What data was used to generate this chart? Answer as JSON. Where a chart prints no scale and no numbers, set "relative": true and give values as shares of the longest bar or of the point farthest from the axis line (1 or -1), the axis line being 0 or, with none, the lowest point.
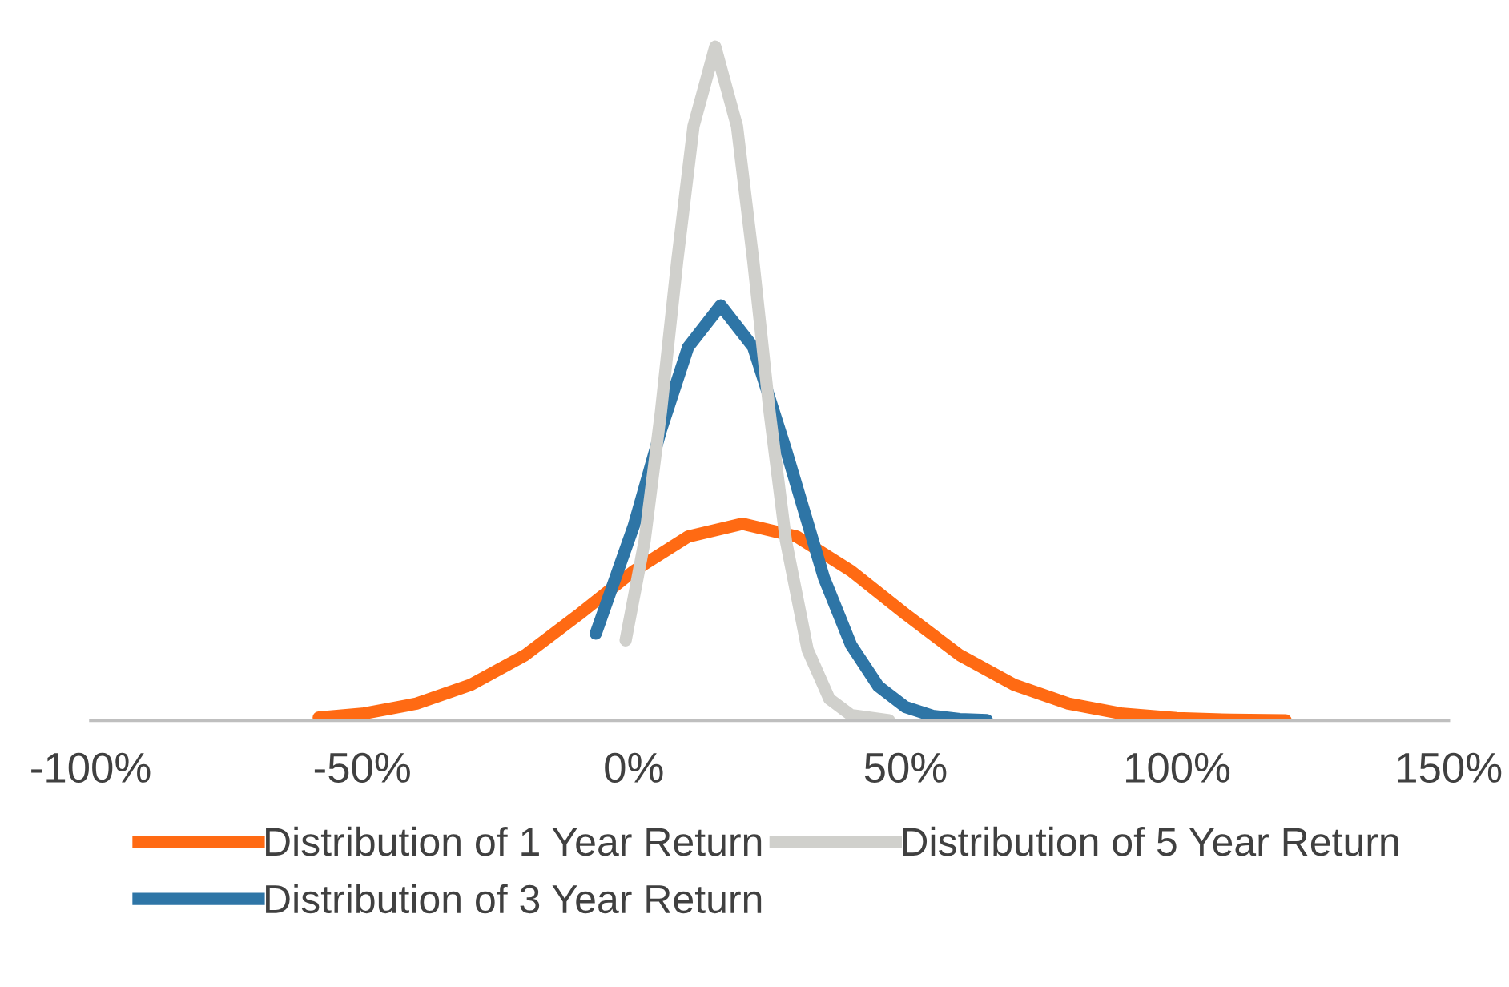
{
  "chart_data": {
    "type": "line",
    "relative": true,
    "xlim": [
      -100,
      150
    ],
    "xticks": [
      {
        "value": -100,
        "label": "-100%"
      },
      {
        "value": -50,
        "label": "-50%"
      },
      {
        "value": 0,
        "label": "0%"
      },
      {
        "value": 50,
        "label": "50%"
      },
      {
        "value": 100,
        "label": "100%"
      },
      {
        "value": 150,
        "label": "150%"
      }
    ],
    "grid": false,
    "legend": "bottom",
    "marker": "none",
    "line_style": "solid",
    "tick_labels": "x",
    "series": [
      {
        "name": "Distribution of 1 Year Return",
        "color": "#ff6a13",
        "x": [
          -58,
          -50,
          -40,
          -30,
          -20,
          -10,
          0,
          10,
          20,
          30,
          40,
          50,
          60,
          70,
          80,
          90,
          100,
          110,
          120
        ],
        "values": [
          0.0045,
          0.01,
          0.025,
          0.053,
          0.097,
          0.158,
          0.222,
          0.273,
          0.292,
          0.273,
          0.222,
          0.158,
          0.097,
          0.053,
          0.025,
          0.01,
          0.0036,
          0.0011,
          0.0003
        ]
      },
      {
        "name": "Distribution of 3 Year Return",
        "color": "#2e75a6",
        "x": [
          -7,
          0,
          5,
          10,
          16,
          22,
          28,
          35,
          40,
          45,
          50,
          55,
          60,
          65
        ],
        "values": [
          0.129,
          0.289,
          0.431,
          0.554,
          0.616,
          0.554,
          0.402,
          0.212,
          0.112,
          0.051,
          0.02,
          0.007,
          0.002,
          0.0005
        ]
      },
      {
        "name": "Distribution of 5 Year Return",
        "color": "#d0d0cc",
        "x": [
          -1.5,
          2,
          5,
          8,
          11,
          15,
          19,
          22,
          25,
          28,
          32,
          36,
          40,
          47
        ],
        "values": [
          0.119,
          0.267,
          0.458,
          0.682,
          0.882,
          1,
          0.882,
          0.682,
          0.458,
          0.267,
          0.105,
          0.032,
          0.008,
          0.0003
        ]
      }
    ]
  }
}
